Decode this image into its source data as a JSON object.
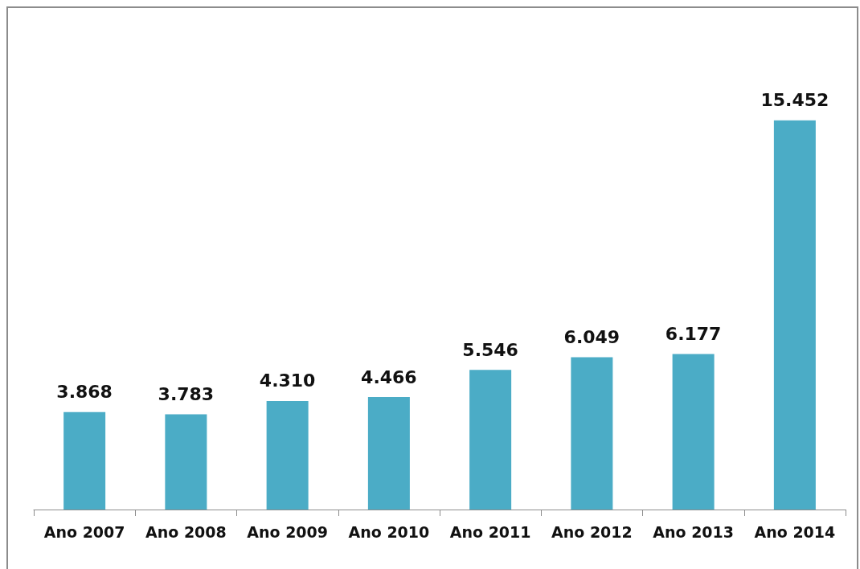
{
  "chart_data": {
    "type": "bar",
    "categories": [
      "Ano 2007",
      "Ano 2008",
      "Ano 2009",
      "Ano 2010",
      "Ano 2011",
      "Ano 2012",
      "Ano 2013",
      "Ano 2014"
    ],
    "values": [
      3868,
      3783,
      4310,
      4466,
      5546,
      6049,
      6177,
      15452
    ],
    "value_labels": [
      "3.868",
      "3.783",
      "4.310",
      "4.466",
      "5.546",
      "6.049",
      "6.177",
      "15.452"
    ],
    "color": "#4bacc6",
    "tick_labels": "x"
  }
}
